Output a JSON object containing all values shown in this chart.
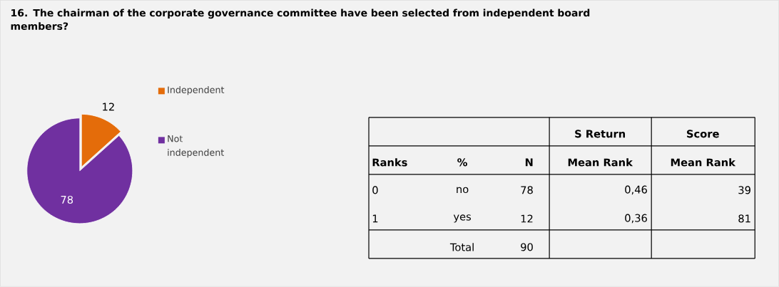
{
  "chart_data": [
    {
      "type": "pie",
      "title": "16. The chairman of the corporate governance committee have been selected from independent board members?",
      "categories": [
        "Independent",
        "Not independent"
      ],
      "values": [
        12,
        78
      ],
      "colors": [
        "#e46c0a",
        "#7030a0"
      ],
      "data_labels": true,
      "legend": "right"
    },
    {
      "type": "other",
      "annotations": [
        "S Return",
        "Score",
        "Ranks",
        "%",
        "N",
        "Mean Rank",
        "Mean Rank",
        "0",
        "no",
        "78",
        "0,46",
        "39",
        "1",
        "yes",
        "12",
        "0,36",
        "81",
        "Total",
        "90"
      ]
    }
  ]
}
